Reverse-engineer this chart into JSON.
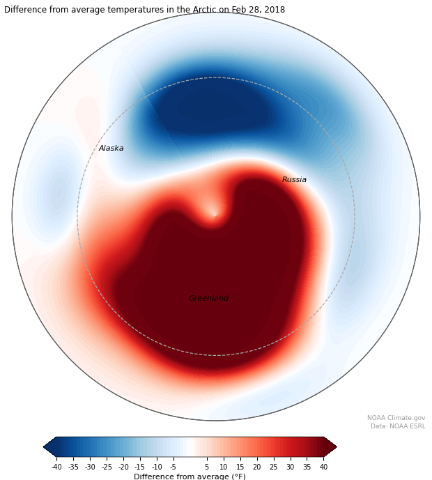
{
  "title": "Difference from average temperatures in the Arctic on Feb 28, 2018",
  "colorbar_label": "Difference from average (°F)",
  "colorbar_ticks": [
    -40,
    -35,
    -30,
    -25,
    -20,
    -15,
    -10,
    -5,
    5,
    10,
    15,
    20,
    25,
    30,
    35,
    40
  ],
  "vmin": -40,
  "vmax": 40,
  "credit_line1": "NOAA Climate.gov",
  "credit_line2": "Data: NOAA ESRL",
  "label_russia": "Russia",
  "label_alaska": "Alaska",
  "label_greenland": "Greenland",
  "label_russia_lon": 85,
  "label_russia_lat": 71,
  "label_alaska_lon": -153,
  "label_alaska_lat": 63,
  "label_greenland_lon": -35,
  "label_greenland_lat": 72,
  "central_longitude": -30,
  "min_lat": 47,
  "dashed_circle_lat": 60,
  "warm_blobs": [
    {
      "lon": 25,
      "lat": 82,
      "amp": 38,
      "lsig": 18,
      "bsig": 5
    },
    {
      "lon": 5,
      "lat": 78,
      "amp": 22,
      "lsig": 22,
      "bsig": 6
    },
    {
      "lon": 55,
      "lat": 77,
      "amp": 20,
      "lsig": 10,
      "bsig": 4
    },
    {
      "lon": -10,
      "lat": 80,
      "amp": 15,
      "lsig": 28,
      "bsig": 5
    },
    {
      "lon": -25,
      "lat": 73,
      "amp": 28,
      "lsig": 22,
      "bsig": 8
    },
    {
      "lon": -18,
      "lat": 67,
      "amp": 40,
      "lsig": 12,
      "bsig": 6
    },
    {
      "lon": -30,
      "lat": 63,
      "amp": 30,
      "lsig": 10,
      "bsig": 5
    },
    {
      "lon": -60,
      "lat": 65,
      "amp": 18,
      "lsig": 14,
      "bsig": 7
    },
    {
      "lon": -80,
      "lat": 60,
      "amp": 15,
      "lsig": 12,
      "bsig": 6
    },
    {
      "lon": -155,
      "lat": 60,
      "amp": 22,
      "lsig": 10,
      "bsig": 5
    },
    {
      "lon": 65,
      "lat": 74,
      "amp": 14,
      "lsig": 12,
      "bsig": 5
    },
    {
      "lon": -5,
      "lat": 58,
      "amp": 12,
      "lsig": 15,
      "bsig": 5
    },
    {
      "lon": 45,
      "lat": 68,
      "amp": 10,
      "lsig": 10,
      "bsig": 4
    }
  ],
  "cold_blobs": [
    {
      "lon": 130,
      "lat": 68,
      "amp": -28,
      "lsig": 18,
      "bsig": 8
    },
    {
      "lon": 148,
      "lat": 76,
      "amp": -30,
      "lsig": 14,
      "bsig": 6
    },
    {
      "lon": 160,
      "lat": 62,
      "amp": -22,
      "lsig": 12,
      "bsig": 5
    },
    {
      "lon": 25,
      "lat": 63,
      "amp": -18,
      "lsig": 12,
      "bsig": 5
    },
    {
      "lon": 20,
      "lat": 57,
      "amp": -12,
      "lsig": 14,
      "bsig": 4
    },
    {
      "lon": -130,
      "lat": 57,
      "amp": -18,
      "lsig": 10,
      "bsig": 4
    },
    {
      "lon": -175,
      "lat": 64,
      "amp": -15,
      "lsig": 12,
      "bsig": 5
    },
    {
      "lon": 90,
      "lat": 67,
      "amp": -8,
      "lsig": 18,
      "bsig": 5
    },
    {
      "lon": -65,
      "lat": 57,
      "amp": -10,
      "lsig": 9,
      "bsig": 4
    },
    {
      "lon": 105,
      "lat": 55,
      "amp": -15,
      "lsig": 10,
      "bsig": 4
    },
    {
      "lon": -15,
      "lat": 52,
      "amp": -10,
      "lsig": 10,
      "bsig": 4
    }
  ]
}
